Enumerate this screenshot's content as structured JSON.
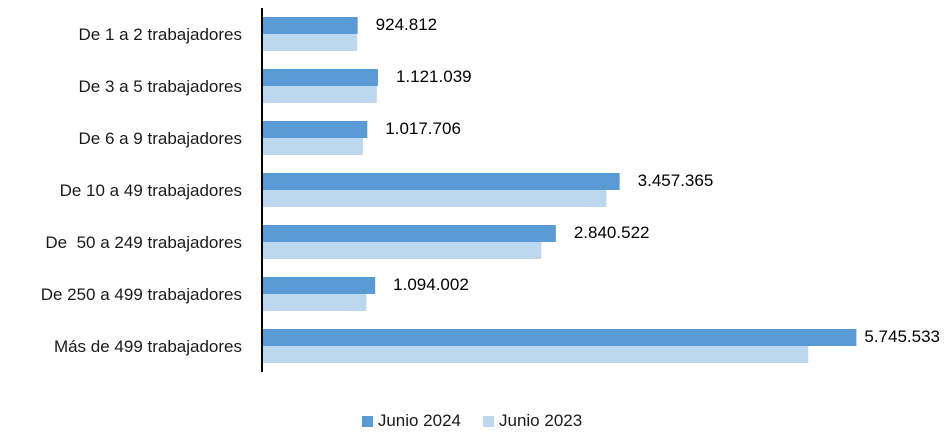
{
  "chart_data": {
    "type": "bar",
    "orientation": "horizontal",
    "categories": [
      "De 1 a 2 trabajadores",
      "De 3 a 5 trabajadores",
      "De 6 a 9 trabajadores",
      "De 10 a 49 trabajadores",
      "De  50 a 249 trabajadores",
      "De 250 a 499 trabajadores",
      "Más de 499 trabajadores"
    ],
    "series": [
      {
        "name": "Junio 2024",
        "color": "#5b9bd5",
        "values": [
          924812,
          1121039,
          1017706,
          3457365,
          2840522,
          1094002,
          5745533
        ],
        "labels": [
          "924.812",
          "1.121.039",
          "1.017.706",
          "3.457.365",
          "2.840.522",
          "1.094.002",
          "5.745.533"
        ]
      },
      {
        "name": "Junio 2023",
        "color": "#bdd7ee",
        "values": [
          920000,
          1110000,
          975000,
          3330000,
          2700000,
          1010000,
          5280000
        ]
      }
    ],
    "xlim": [
      0,
      5800000
    ],
    "grid": false,
    "legend_position": "bottom"
  }
}
